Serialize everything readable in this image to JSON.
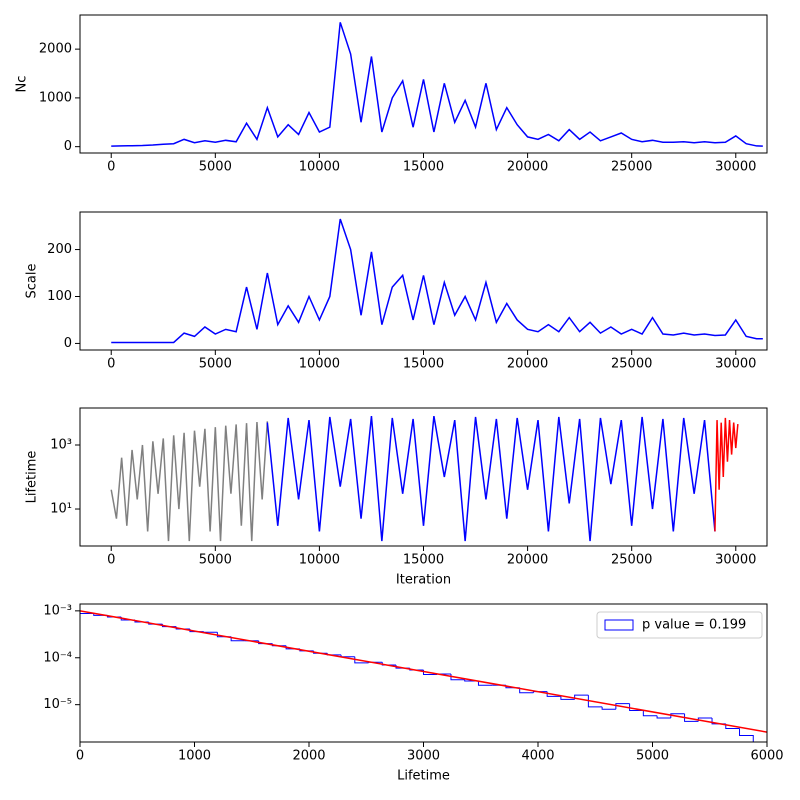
{
  "chart_data": [
    {
      "type": "line",
      "ylabel": "Nc",
      "xlim": [
        -1500,
        31500
      ],
      "xticks": [
        0,
        5000,
        10000,
        15000,
        20000,
        25000,
        30000
      ],
      "ylim": [
        -130,
        2700
      ],
      "yticks": [
        0,
        1000,
        2000
      ],
      "series": [
        {
          "color": "blue",
          "x": [
            0,
            500,
            1000,
            1500,
            2000,
            2500,
            3000,
            3500,
            4000,
            4500,
            5000,
            5500,
            6000,
            6500,
            7000,
            7500,
            8000,
            8500,
            9000,
            9500,
            10000,
            10500,
            11000,
            11500,
            12000,
            12500,
            13000,
            13500,
            14000,
            14500,
            15000,
            15500,
            16000,
            16500,
            17000,
            17500,
            18000,
            18500,
            19000,
            19500,
            20000,
            20500,
            21000,
            21500,
            22000,
            22500,
            23000,
            23500,
            24000,
            24500,
            25000,
            25500,
            26000,
            26500,
            27000,
            27500,
            28000,
            28500,
            29000,
            29500,
            30000,
            30500,
            31000,
            31300
          ],
          "values": [
            10,
            15,
            20,
            25,
            35,
            50,
            60,
            150,
            80,
            120,
            90,
            130,
            100,
            480,
            150,
            800,
            200,
            450,
            250,
            700,
            300,
            400,
            2550,
            1900,
            500,
            1850,
            300,
            1000,
            1350,
            400,
            1380,
            300,
            1300,
            500,
            950,
            400,
            1300,
            350,
            800,
            450,
            200,
            150,
            250,
            120,
            350,
            150,
            300,
            120,
            200,
            280,
            150,
            100,
            130,
            90,
            90,
            100,
            80,
            100,
            80,
            90,
            220,
            60,
            15,
            10
          ]
        }
      ]
    },
    {
      "type": "line",
      "ylabel": "Scale",
      "xlim": [
        -1500,
        31500
      ],
      "xticks": [
        0,
        5000,
        10000,
        15000,
        20000,
        25000,
        30000
      ],
      "ylim": [
        -14,
        280
      ],
      "yticks": [
        0,
        100,
        200
      ],
      "series": [
        {
          "color": "blue",
          "x": [
            0,
            500,
            1000,
            1500,
            2000,
            2500,
            3000,
            3500,
            4000,
            4500,
            5000,
            5500,
            6000,
            6500,
            7000,
            7500,
            8000,
            8500,
            9000,
            9500,
            10000,
            10500,
            11000,
            11500,
            12000,
            12500,
            13000,
            13500,
            14000,
            14500,
            15000,
            15500,
            16000,
            16500,
            17000,
            17500,
            18000,
            18500,
            19000,
            19500,
            20000,
            20500,
            21000,
            21500,
            22000,
            22500,
            23000,
            23500,
            24000,
            24500,
            25000,
            25500,
            26000,
            26500,
            27000,
            27500,
            28000,
            28500,
            29000,
            29500,
            30000,
            30500,
            31000,
            31300
          ],
          "values": [
            2,
            2,
            2,
            2,
            2,
            2,
            2,
            22,
            15,
            35,
            20,
            30,
            25,
            120,
            30,
            150,
            40,
            80,
            45,
            100,
            50,
            100,
            265,
            200,
            60,
            195,
            40,
            120,
            145,
            50,
            145,
            40,
            130,
            60,
            100,
            50,
            130,
            45,
            85,
            50,
            30,
            25,
            40,
            25,
            55,
            25,
            45,
            22,
            35,
            20,
            30,
            20,
            55,
            20,
            18,
            22,
            18,
            20,
            17,
            18,
            50,
            15,
            10,
            10
          ]
        }
      ]
    },
    {
      "type": "line",
      "ylabel": "Lifetime",
      "xlabel": "Iteration",
      "log_y": true,
      "xlim": [
        -1500,
        31500
      ],
      "xticks": [
        0,
        5000,
        10000,
        15000,
        20000,
        25000,
        30000
      ],
      "ylim": [
        0.7,
        14300
      ],
      "yticks": [
        {
          "value": 10,
          "label": "10¹"
        },
        {
          "value": 1000,
          "label": "10³"
        }
      ],
      "series": [
        {
          "color": "gray",
          "x": [
            0,
            250,
            500,
            750,
            1000,
            1250,
            1500,
            1750,
            2000,
            2250,
            2500,
            2750,
            3000,
            3250,
            3500,
            3750,
            4000,
            4250,
            4500,
            4750,
            5000,
            5250,
            5500,
            5750,
            6000,
            6250,
            6500,
            6750,
            7000,
            7250,
            7500
          ],
          "values": [
            40,
            5,
            400,
            3,
            700,
            20,
            1000,
            2,
            1300,
            30,
            1600,
            1,
            2000,
            10,
            2400,
            1,
            2800,
            50,
            3200,
            2,
            3600,
            1,
            4000,
            30,
            4400,
            3,
            4800,
            1,
            5200,
            20,
            5500
          ]
        },
        {
          "color": "blue",
          "x": [
            7500,
            8000,
            8500,
            9000,
            9500,
            10000,
            10500,
            11000,
            11500,
            12000,
            12500,
            13000,
            13500,
            14000,
            14500,
            15000,
            15500,
            16000,
            16500,
            17000,
            17500,
            18000,
            18500,
            19000,
            19500,
            20000,
            20500,
            21000,
            21500,
            22000,
            22500,
            23000,
            23500,
            24000,
            24500,
            25000,
            25500,
            26000,
            26500,
            27000,
            27500,
            28000,
            28500,
            29000
          ],
          "values": [
            5000,
            3,
            7000,
            20,
            6000,
            2,
            7500,
            50,
            6500,
            5,
            8000,
            1,
            7000,
            30,
            6500,
            3,
            8000,
            100,
            6000,
            1,
            7500,
            20,
            6500,
            5,
            7000,
            40,
            6000,
            2,
            7500,
            15,
            6500,
            1,
            7000,
            60,
            6000,
            3,
            7500,
            10,
            6500,
            2,
            7000,
            30,
            6000,
            2
          ]
        },
        {
          "color": "red",
          "x": [
            29000,
            29100,
            29200,
            29300,
            29400,
            29500,
            29600,
            29700,
            29800,
            29900,
            30000,
            30100
          ],
          "values": [
            2,
            6000,
            40,
            5000,
            100,
            7000,
            300,
            6000,
            500,
            5000,
            800,
            4500
          ]
        }
      ]
    },
    {
      "type": "histogram",
      "xlabel": "Lifetime",
      "log_y": true,
      "xlim": [
        0,
        6000
      ],
      "xticks": [
        0,
        1000,
        2000,
        3000,
        4000,
        5000,
        6000
      ],
      "ylim": [
        1.6e-06,
        0.0014
      ],
      "yticks": [
        {
          "value": 0.001,
          "label": "10⁻³"
        },
        {
          "value": 0.0001,
          "label": "10⁻⁴"
        },
        {
          "value": 1e-05,
          "label": "10⁻⁵"
        }
      ],
      "name": "p value = 0.199",
      "color": "blue",
      "legend": "upper right",
      "bins": [
        0,
        120,
        240,
        360,
        480,
        600,
        720,
        840,
        960,
        1080,
        1200,
        1320,
        1440,
        1560,
        1680,
        1800,
        1920,
        2040,
        2160,
        2280,
        2400,
        2520,
        2640,
        2760,
        2880,
        3000,
        3120,
        3240,
        3360,
        3480,
        3600,
        3720,
        3840,
        3960,
        4080,
        4200,
        4320,
        4440,
        4560,
        4680,
        4800,
        4920,
        5040,
        5160,
        5280,
        5400,
        5520,
        5640,
        5760,
        5880
      ],
      "values": [
        0.00088,
        0.0008,
        0.00074,
        0.00064,
        0.00058,
        0.00052,
        0.00046,
        0.00041,
        0.00036,
        0.00035,
        0.00028,
        0.00023,
        0.00023,
        0.0002,
        0.00018,
        0.000155,
        0.00014,
        0.000125,
        0.000115,
        0.000105,
        7.8e-05,
        8e-05,
        7e-05,
        6e-05,
        5.5e-05,
        4.4e-05,
        4.5e-05,
        3.4e-05,
        3.2e-05,
        2.6e-05,
        2.6e-05,
        2.3e-05,
        1.8e-05,
        1.9e-05,
        1.5e-05,
        1.3e-05,
        1.6e-05,
        9e-06,
        8e-06,
        1.05e-05,
        7.5e-06,
        5.8e-06,
        5.2e-06,
        6.4e-06,
        4.4e-06,
        5.2e-06,
        3.9e-06,
        3.1e-06,
        2.2e-06
      ],
      "fit_line": {
        "color": "red",
        "x": [
          0,
          6000
        ],
        "values": [
          0.001,
          2.6e-06
        ]
      }
    }
  ]
}
